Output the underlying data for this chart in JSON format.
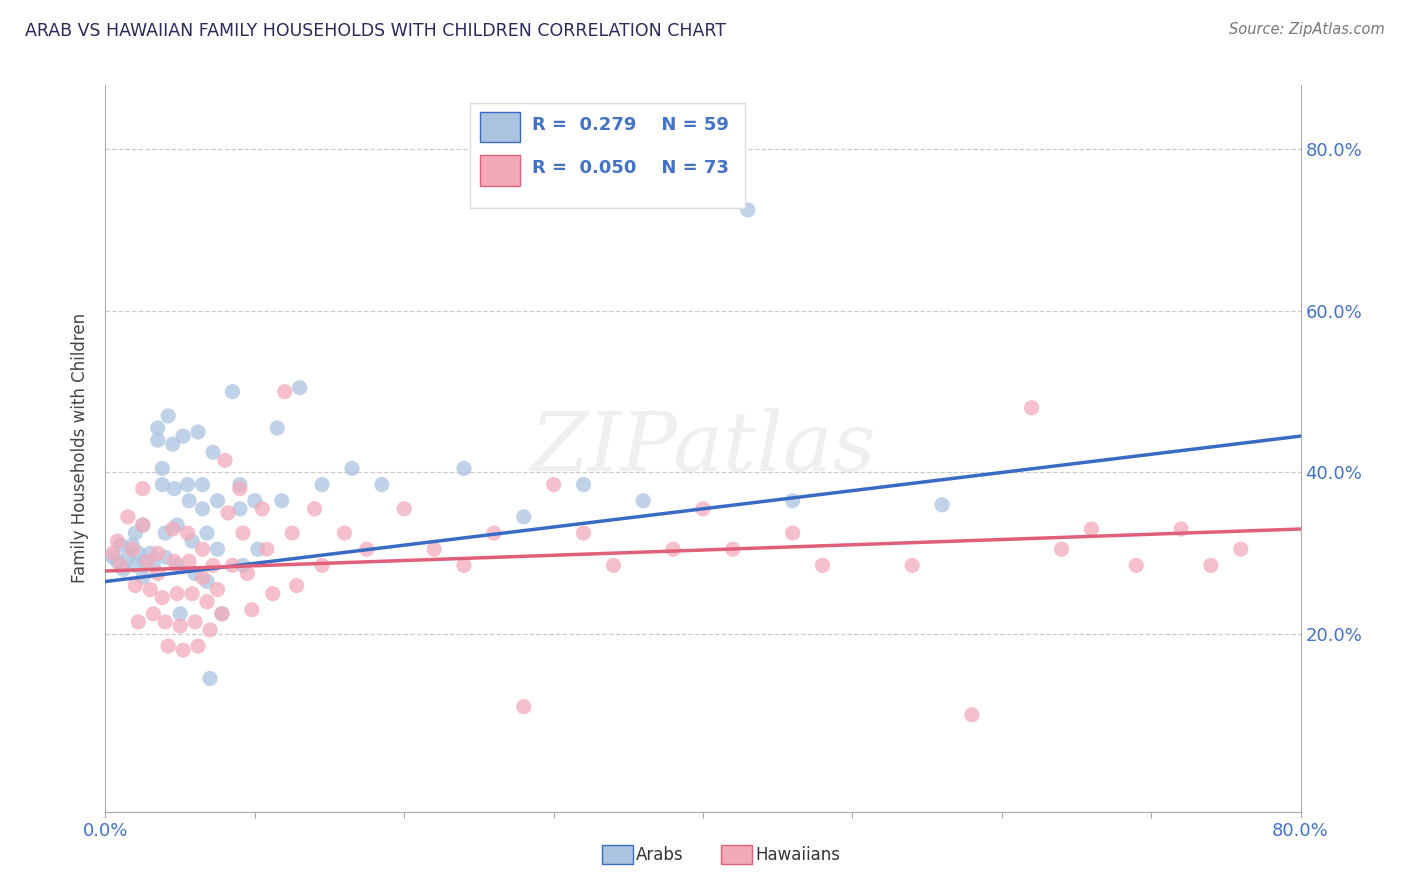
{
  "title": "ARAB VS HAWAIIAN FAMILY HOUSEHOLDS WITH CHILDREN CORRELATION CHART",
  "source": "Source: ZipAtlas.com",
  "ylabel": "Family Households with Children",
  "xlim": [
    0.0,
    0.8
  ],
  "ylim": [
    -0.02,
    0.88
  ],
  "ytick_positions": [
    0.2,
    0.4,
    0.6,
    0.8
  ],
  "ytick_labels": [
    "20.0%",
    "40.0%",
    "60.0%",
    "80.0%"
  ],
  "arab_R": "0.279",
  "arab_N": "59",
  "hawaiian_R": "0.050",
  "hawaiian_N": "73",
  "arab_color": "#aac4e0",
  "hawaiian_color": "#f2aabb",
  "arab_line_color": "#3a6bc4",
  "hawaiian_line_color": "#e0607a",
  "watermark": "ZIPatlas",
  "arab_trend": [
    0.0,
    0.265,
    0.8,
    0.445
  ],
  "hawaiian_trend": [
    0.0,
    0.278,
    0.8,
    0.33
  ],
  "arab_scatter": [
    [
      0.005,
      0.295
    ],
    [
      0.008,
      0.29
    ],
    [
      0.01,
      0.31
    ],
    [
      0.012,
      0.28
    ],
    [
      0.015,
      0.295
    ],
    [
      0.018,
      0.31
    ],
    [
      0.02,
      0.325
    ],
    [
      0.02,
      0.285
    ],
    [
      0.022,
      0.3
    ],
    [
      0.025,
      0.335
    ],
    [
      0.025,
      0.27
    ],
    [
      0.026,
      0.29
    ],
    [
      0.03,
      0.3
    ],
    [
      0.032,
      0.285
    ],
    [
      0.035,
      0.455
    ],
    [
      0.035,
      0.44
    ],
    [
      0.038,
      0.405
    ],
    [
      0.038,
      0.385
    ],
    [
      0.04,
      0.325
    ],
    [
      0.04,
      0.295
    ],
    [
      0.042,
      0.47
    ],
    [
      0.045,
      0.435
    ],
    [
      0.046,
      0.38
    ],
    [
      0.048,
      0.335
    ],
    [
      0.048,
      0.285
    ],
    [
      0.05,
      0.225
    ],
    [
      0.052,
      0.445
    ],
    [
      0.055,
      0.385
    ],
    [
      0.056,
      0.365
    ],
    [
      0.058,
      0.315
    ],
    [
      0.06,
      0.275
    ],
    [
      0.062,
      0.45
    ],
    [
      0.065,
      0.385
    ],
    [
      0.065,
      0.355
    ],
    [
      0.068,
      0.325
    ],
    [
      0.068,
      0.265
    ],
    [
      0.07,
      0.145
    ],
    [
      0.072,
      0.425
    ],
    [
      0.075,
      0.365
    ],
    [
      0.075,
      0.305
    ],
    [
      0.078,
      0.225
    ],
    [
      0.085,
      0.5
    ],
    [
      0.09,
      0.385
    ],
    [
      0.09,
      0.355
    ],
    [
      0.092,
      0.285
    ],
    [
      0.1,
      0.365
    ],
    [
      0.102,
      0.305
    ],
    [
      0.115,
      0.455
    ],
    [
      0.118,
      0.365
    ],
    [
      0.13,
      0.505
    ],
    [
      0.145,
      0.385
    ],
    [
      0.165,
      0.405
    ],
    [
      0.185,
      0.385
    ],
    [
      0.24,
      0.405
    ],
    [
      0.28,
      0.345
    ],
    [
      0.32,
      0.385
    ],
    [
      0.36,
      0.365
    ],
    [
      0.43,
      0.725
    ],
    [
      0.46,
      0.365
    ],
    [
      0.56,
      0.36
    ]
  ],
  "hawaiian_scatter": [
    [
      0.005,
      0.3
    ],
    [
      0.008,
      0.315
    ],
    [
      0.01,
      0.285
    ],
    [
      0.015,
      0.345
    ],
    [
      0.018,
      0.305
    ],
    [
      0.02,
      0.26
    ],
    [
      0.022,
      0.215
    ],
    [
      0.025,
      0.38
    ],
    [
      0.025,
      0.335
    ],
    [
      0.028,
      0.29
    ],
    [
      0.03,
      0.255
    ],
    [
      0.032,
      0.225
    ],
    [
      0.035,
      0.3
    ],
    [
      0.035,
      0.275
    ],
    [
      0.038,
      0.245
    ],
    [
      0.04,
      0.215
    ],
    [
      0.042,
      0.185
    ],
    [
      0.045,
      0.33
    ],
    [
      0.046,
      0.29
    ],
    [
      0.048,
      0.25
    ],
    [
      0.05,
      0.21
    ],
    [
      0.052,
      0.18
    ],
    [
      0.055,
      0.325
    ],
    [
      0.056,
      0.29
    ],
    [
      0.058,
      0.25
    ],
    [
      0.06,
      0.215
    ],
    [
      0.062,
      0.185
    ],
    [
      0.065,
      0.305
    ],
    [
      0.065,
      0.27
    ],
    [
      0.068,
      0.24
    ],
    [
      0.07,
      0.205
    ],
    [
      0.072,
      0.285
    ],
    [
      0.075,
      0.255
    ],
    [
      0.078,
      0.225
    ],
    [
      0.08,
      0.415
    ],
    [
      0.082,
      0.35
    ],
    [
      0.085,
      0.285
    ],
    [
      0.09,
      0.38
    ],
    [
      0.092,
      0.325
    ],
    [
      0.095,
      0.275
    ],
    [
      0.098,
      0.23
    ],
    [
      0.105,
      0.355
    ],
    [
      0.108,
      0.305
    ],
    [
      0.112,
      0.25
    ],
    [
      0.12,
      0.5
    ],
    [
      0.125,
      0.325
    ],
    [
      0.128,
      0.26
    ],
    [
      0.14,
      0.355
    ],
    [
      0.145,
      0.285
    ],
    [
      0.16,
      0.325
    ],
    [
      0.175,
      0.305
    ],
    [
      0.2,
      0.355
    ],
    [
      0.22,
      0.305
    ],
    [
      0.24,
      0.285
    ],
    [
      0.26,
      0.325
    ],
    [
      0.28,
      0.11
    ],
    [
      0.3,
      0.385
    ],
    [
      0.32,
      0.325
    ],
    [
      0.34,
      0.285
    ],
    [
      0.38,
      0.305
    ],
    [
      0.4,
      0.355
    ],
    [
      0.42,
      0.305
    ],
    [
      0.46,
      0.325
    ],
    [
      0.48,
      0.285
    ],
    [
      0.54,
      0.285
    ],
    [
      0.58,
      0.1
    ],
    [
      0.62,
      0.48
    ],
    [
      0.64,
      0.305
    ],
    [
      0.66,
      0.33
    ],
    [
      0.69,
      0.285
    ],
    [
      0.72,
      0.33
    ],
    [
      0.74,
      0.285
    ],
    [
      0.76,
      0.305
    ]
  ]
}
